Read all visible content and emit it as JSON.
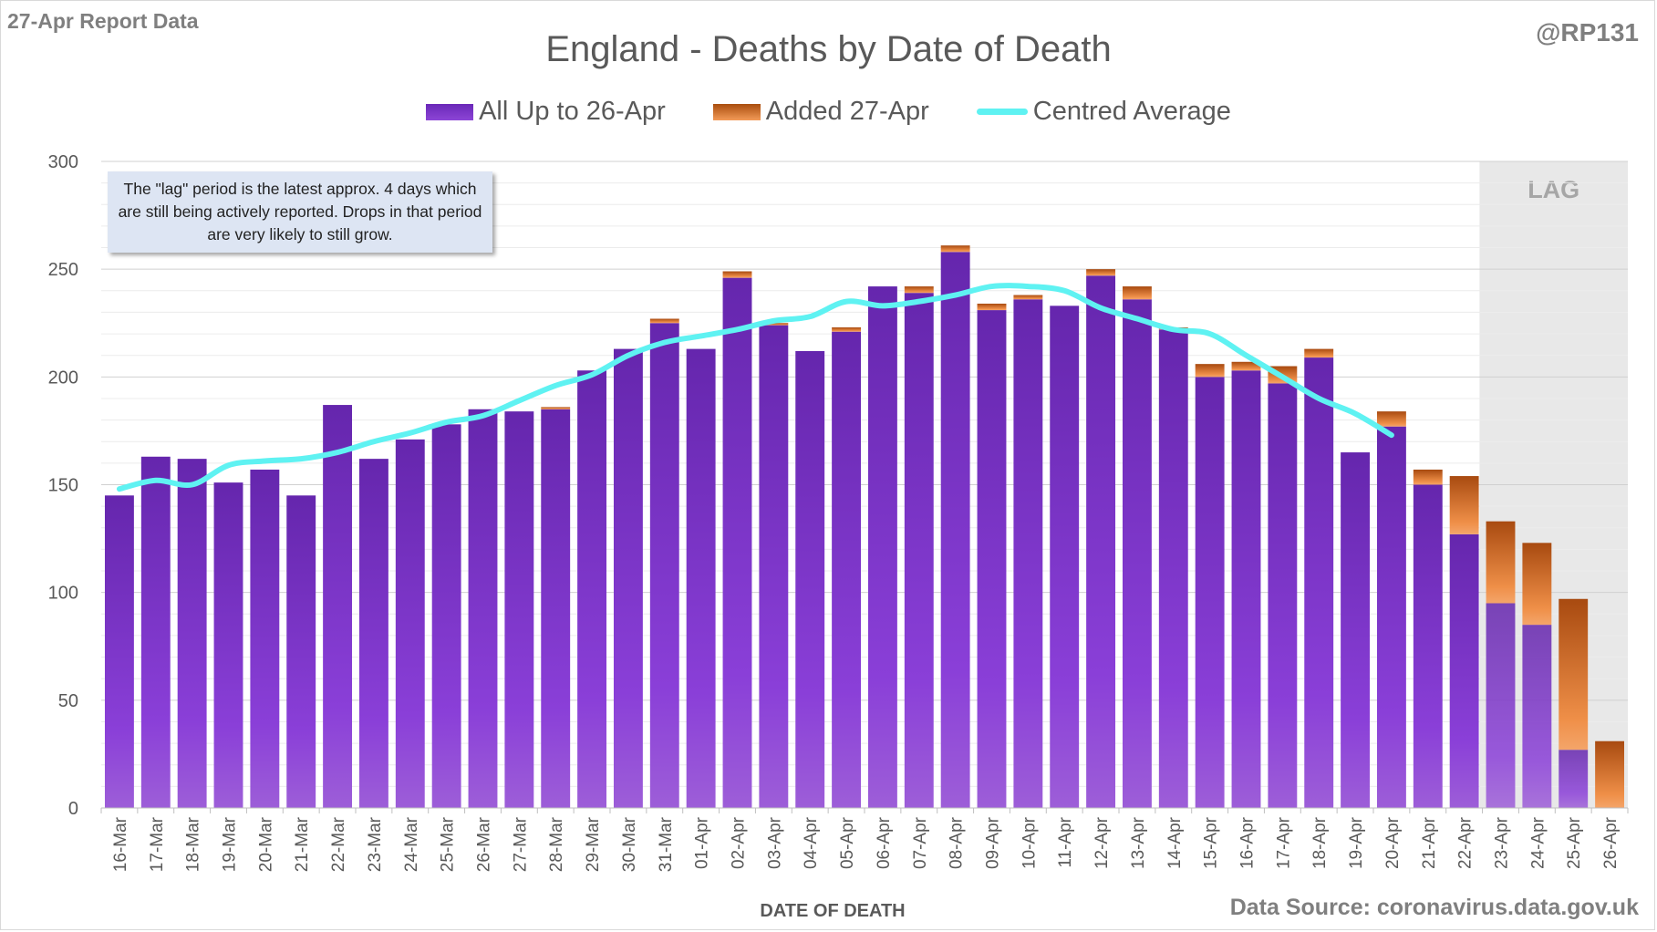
{
  "header": {
    "report_label": "27-Apr Report Data",
    "author": "@RP131",
    "source": "Data Source: coronavirus.data.gov.uk"
  },
  "annotation": "The \"lag\" period is the latest approx. 4 days which are still being actively reported.  Drops in that period are very likely to still grow.",
  "colors": {
    "primary": "#7a35c8",
    "added": "#e07a30",
    "average": "#5ff2f2",
    "lag_shade": "#e8e8e8",
    "text": "#595959"
  },
  "chart_data": {
    "type": "bar",
    "stacked": true,
    "title": "England - Deaths by Date of Death",
    "xlabel": "DATE OF DEATH",
    "ylabel": "",
    "ylim": [
      0,
      300
    ],
    "yticks": [
      0,
      50,
      100,
      150,
      200,
      250,
      300
    ],
    "grid": true,
    "legend_position": "top",
    "categories": [
      "16-Mar",
      "17-Mar",
      "18-Mar",
      "19-Mar",
      "20-Mar",
      "21-Mar",
      "22-Mar",
      "23-Mar",
      "24-Mar",
      "25-Mar",
      "26-Mar",
      "27-Mar",
      "28-Mar",
      "29-Mar",
      "30-Mar",
      "31-Mar",
      "01-Apr",
      "02-Apr",
      "03-Apr",
      "04-Apr",
      "05-Apr",
      "06-Apr",
      "07-Apr",
      "08-Apr",
      "09-Apr",
      "10-Apr",
      "11-Apr",
      "12-Apr",
      "13-Apr",
      "14-Apr",
      "15-Apr",
      "16-Apr",
      "17-Apr",
      "18-Apr",
      "19-Apr",
      "20-Apr",
      "21-Apr",
      "22-Apr",
      "23-Apr",
      "24-Apr",
      "25-Apr",
      "26-Apr"
    ],
    "series": [
      {
        "name": "All Up to 26-Apr",
        "kind": "bar",
        "values": [
          145,
          163,
          162,
          151,
          157,
          145,
          187,
          162,
          171,
          178,
          185,
          184,
          185,
          203,
          213,
          225,
          213,
          246,
          224,
          212,
          221,
          242,
          239,
          258,
          231,
          236,
          233,
          247,
          236,
          222,
          200,
          203,
          197,
          209,
          165,
          177,
          150,
          127,
          95,
          85,
          27,
          0
        ]
      },
      {
        "name": "Added 27-Apr",
        "kind": "bar",
        "values": [
          0,
          0,
          0,
          0,
          0,
          0,
          0,
          0,
          0,
          0,
          0,
          0,
          1,
          0,
          0,
          2,
          0,
          3,
          1,
          0,
          2,
          0,
          3,
          3,
          3,
          2,
          0,
          3,
          6,
          1,
          6,
          4,
          8,
          4,
          0,
          7,
          7,
          27,
          38,
          38,
          70,
          31
        ]
      },
      {
        "name": "Centred Average",
        "kind": "line",
        "values": [
          148,
          152,
          150,
          159,
          161,
          162,
          165,
          170,
          174,
          179,
          182,
          189,
          196,
          201,
          210,
          216,
          219,
          222,
          226,
          228,
          235,
          233,
          235,
          238,
          242,
          242,
          240,
          232,
          227,
          222,
          220,
          210,
          200,
          190,
          183,
          173,
          null,
          null,
          null,
          null,
          null,
          null
        ]
      }
    ],
    "lag_region": {
      "label": "LAG",
      "from": "23-Apr",
      "to": "26-Apr"
    }
  }
}
